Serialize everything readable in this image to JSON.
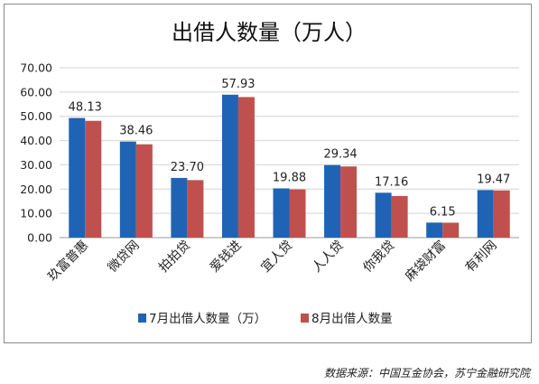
{
  "source_note": "数据来源：中国互金协会，苏宁金融研究院",
  "chart_data": {
    "type": "bar",
    "title": "出借人数量（万人）",
    "categories": [
      "玖富普惠",
      "微贷网",
      "拍拍贷",
      "爱钱进",
      "宜人贷",
      "人人贷",
      "你我贷",
      "麻袋财富",
      "有利网"
    ],
    "series": [
      {
        "name": "7月出借人数量（万）",
        "color": "#1f64b4",
        "values": [
          49.3,
          39.6,
          24.6,
          58.9,
          20.3,
          29.9,
          18.5,
          6.2,
          19.6
        ]
      },
      {
        "name": "8月出借人数量",
        "color": "#c0504d",
        "values": [
          48.13,
          38.46,
          23.7,
          57.93,
          19.88,
          29.34,
          17.16,
          6.15,
          19.47
        ]
      }
    ],
    "data_labels": [
      "48.13",
      "38.46",
      "23.70",
      "57.93",
      "19.88",
      "29.34",
      "17.16",
      "6.15",
      "19.47"
    ],
    "ylim": [
      0,
      70
    ],
    "yticks": [
      "0.00",
      "10.00",
      "20.00",
      "30.00",
      "40.00",
      "50.00",
      "60.00",
      "70.00"
    ],
    "grid": true,
    "legend_position": "bottom"
  }
}
